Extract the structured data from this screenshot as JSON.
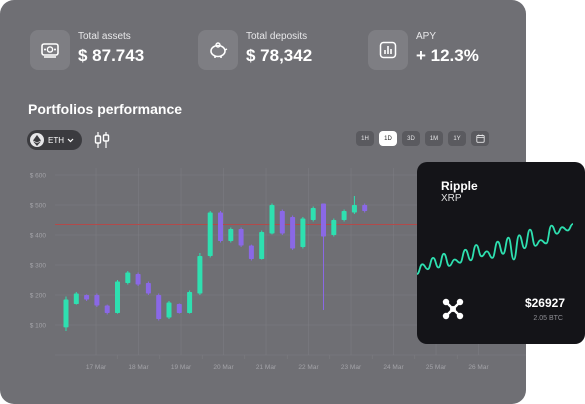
{
  "stats": [
    {
      "label": "Total assets",
      "value": "$ 87.743",
      "icon": "cash-icon"
    },
    {
      "label": "Total deposits",
      "value": "$ 78,342",
      "icon": "piggy-bank-icon"
    },
    {
      "label": "APY",
      "value": "+ 12.3%",
      "icon": "bar-chart-icon"
    }
  ],
  "portfolio": {
    "title": "Portfolios performance",
    "pair": "ETH",
    "timeframes": [
      "1H",
      "1D",
      "3D",
      "1M",
      "1Y"
    ],
    "active_timeframe": "1D"
  },
  "chart_data": {
    "type": "candlestick",
    "y_ticks": [
      "$ 600",
      "$ 500",
      "$ 400",
      "$ 300",
      "$ 200",
      "$ 100"
    ],
    "y_tick_values": [
      600,
      500,
      400,
      300,
      200,
      100
    ],
    "ylim": [
      0,
      620
    ],
    "x_ticks": [
      "17 Mar",
      "18 Mar",
      "19 Mar",
      "20 Mar",
      "21 Mar",
      "22 Mar",
      "23 Mar",
      "24 Mar",
      "25 Mar",
      "26 Mar"
    ],
    "reference_line": 435,
    "colors": {
      "up": "#2ee0b0",
      "down": "#8a68e6",
      "reference": "#b24a4a"
    },
    "candles": [
      {
        "o": 92,
        "c": 185,
        "h": 195,
        "l": 80,
        "dir": "up"
      },
      {
        "o": 170,
        "c": 205,
        "h": 210,
        "l": 168,
        "dir": "up"
      },
      {
        "o": 200,
        "c": 185,
        "h": 202,
        "l": 180,
        "dir": "down"
      },
      {
        "o": 200,
        "c": 165,
        "h": 205,
        "l": 160,
        "dir": "down"
      },
      {
        "o": 165,
        "c": 140,
        "h": 168,
        "l": 135,
        "dir": "down"
      },
      {
        "o": 140,
        "c": 245,
        "h": 250,
        "l": 138,
        "dir": "up"
      },
      {
        "o": 240,
        "c": 275,
        "h": 280,
        "l": 235,
        "dir": "up"
      },
      {
        "o": 270,
        "c": 235,
        "h": 275,
        "l": 230,
        "dir": "down"
      },
      {
        "o": 240,
        "c": 205,
        "h": 245,
        "l": 200,
        "dir": "down"
      },
      {
        "o": 200,
        "c": 120,
        "h": 205,
        "l": 115,
        "dir": "down"
      },
      {
        "o": 125,
        "c": 175,
        "h": 180,
        "l": 120,
        "dir": "up"
      },
      {
        "o": 170,
        "c": 140,
        "h": 172,
        "l": 138,
        "dir": "down"
      },
      {
        "o": 140,
        "c": 210,
        "h": 215,
        "l": 138,
        "dir": "up"
      },
      {
        "o": 205,
        "c": 330,
        "h": 340,
        "l": 200,
        "dir": "up"
      },
      {
        "o": 330,
        "c": 475,
        "h": 480,
        "l": 325,
        "dir": "up"
      },
      {
        "o": 475,
        "c": 380,
        "h": 480,
        "l": 375,
        "dir": "down"
      },
      {
        "o": 380,
        "c": 420,
        "h": 425,
        "l": 375,
        "dir": "up"
      },
      {
        "o": 420,
        "c": 365,
        "h": 425,
        "l": 360,
        "dir": "down"
      },
      {
        "o": 365,
        "c": 320,
        "h": 368,
        "l": 315,
        "dir": "down"
      },
      {
        "o": 320,
        "c": 410,
        "h": 415,
        "l": 318,
        "dir": "up"
      },
      {
        "o": 405,
        "c": 500,
        "h": 505,
        "l": 402,
        "dir": "up"
      },
      {
        "o": 480,
        "c": 405,
        "h": 485,
        "l": 400,
        "dir": "down"
      },
      {
        "o": 460,
        "c": 355,
        "h": 465,
        "l": 350,
        "dir": "down"
      },
      {
        "o": 360,
        "c": 455,
        "h": 460,
        "l": 355,
        "dir": "up"
      },
      {
        "o": 450,
        "c": 490,
        "h": 495,
        "l": 445,
        "dir": "up"
      },
      {
        "o": 505,
        "c": 395,
        "h": 505,
        "l": 150,
        "dir": "down"
      },
      {
        "o": 400,
        "c": 450,
        "h": 455,
        "l": 395,
        "dir": "up"
      },
      {
        "o": 450,
        "c": 480,
        "h": 485,
        "l": 445,
        "dir": "up"
      },
      {
        "o": 475,
        "c": 500,
        "h": 530,
        "l": 470,
        "dir": "up"
      },
      {
        "o": 500,
        "c": 480,
        "h": 505,
        "l": 475,
        "dir": "down"
      }
    ]
  },
  "card": {
    "name": "Ripple",
    "ticker": "XRP",
    "price": "$26927",
    "amount": "2.05 BTC",
    "icon": "ripple-logo-icon",
    "sparkline": [
      30,
      42,
      36,
      50,
      38,
      55,
      40,
      48,
      44,
      60,
      47,
      66,
      52,
      58,
      50,
      70,
      55,
      75,
      48,
      78,
      62,
      85,
      65,
      72,
      68,
      90,
      80,
      88,
      84,
      92
    ]
  }
}
